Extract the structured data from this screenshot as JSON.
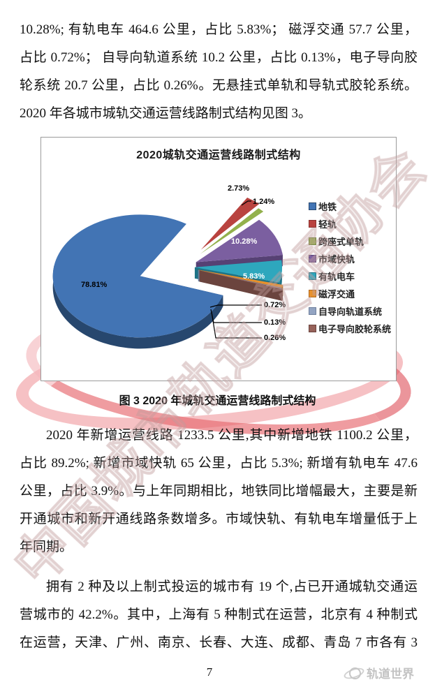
{
  "page": {
    "watermark_text": "中国城市轨道交通协会",
    "figure_caption": "图 3  2020 年城轨交通运营线路制式结构",
    "page_number": "7",
    "footer_logo": "轨道世界",
    "paragraphs": [
      {
        "indent_first": false,
        "justify_last": false,
        "lines": [
          "10.28%; 有轨电车 464.6 公里，占比 5.83%； 磁浮交通 57.7 公里，",
          "占比 0.72%； 自导向轨道系统 10.2 公里，占比 0.13%，电子导向胶",
          "轮系统 20.7 公里，占比 0.26%。无悬挂式单轨和导轨式胶轮系统。",
          "2020 年各城市城轨交通运营线路制式结构见图 3。"
        ]
      },
      {
        "indent_first": true,
        "justify_last": false,
        "lines": [
          "2020 年新增运营线路 1233.5 公里,其中新增地铁 1100.2 公里，",
          "占比 89.2%; 新增市域快轨 65 公里，占比 5.3%; 新增有轨电车 47.6",
          "公里，占比 3.9%。与上年同期相比，地铁同比增幅最大，主要是新",
          "开通城市和新开通线路条数增多。市域快轨、有轨电车增量低于上",
          "年同期。"
        ]
      },
      {
        "indent_first": true,
        "justify_last": true,
        "lines": [
          "拥有 2 种及以上制式投运的城市有 19 个,占已开通城轨交通运",
          "营城市的 42.2%。其中，上海有 5 种制式在运营，北京有 4 种制式",
          "在运营，天津、广州、南京、长春、大连、成都、青岛 7 市各有 3"
        ]
      }
    ]
  },
  "chart_data": {
    "type": "pie",
    "effect": "3d-exploded",
    "title": "2020城轨交通运营线路制式结构",
    "legend_position": "right",
    "categories": [
      "地铁",
      "轻轨",
      "跨座式单轨",
      "市域快轨",
      "有轨电车",
      "磁浮交通",
      "自导向轨道系统",
      "电子导向胶轮系统"
    ],
    "values": [
      78.81,
      2.73,
      1.24,
      10.28,
      5.83,
      0.72,
      0.13,
      0.26
    ],
    "labels": [
      "78.81%",
      "2.73%",
      "1.24%",
      "10.28%",
      "5.83%",
      "0.72%",
      "0.13%",
      "0.26%"
    ],
    "colors": [
      "#4274b4",
      "#b9433f",
      "#93b14c",
      "#7b5fa0",
      "#2ea7bd",
      "#e8912d",
      "#93a4c2",
      "#96625a"
    ],
    "colors_dark": [
      "#27476e",
      "#8a322f",
      "#6a8136",
      "#564174",
      "#1e7386",
      "#b26a1e",
      "#6e7f9d",
      "#6b443e"
    ]
  }
}
